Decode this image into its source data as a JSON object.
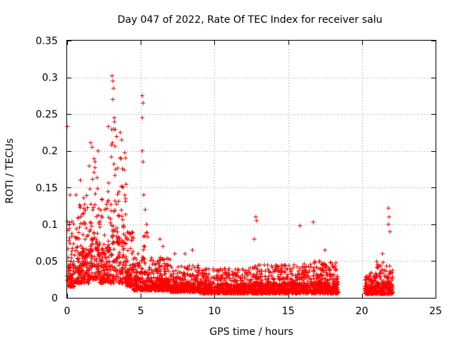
{
  "chart_data": {
    "type": "scatter",
    "title": "Day 047 of 2022, Rate Of TEC Index for receiver salu",
    "xlabel": "GPS time / hours",
    "ylabel": "ROTI / TECUs",
    "xlim": [
      0,
      25
    ],
    "ylim": [
      0,
      0.35
    ],
    "x_ticks": [
      0,
      5,
      10,
      15,
      20,
      25
    ],
    "x_tick_labels": [
      "0",
      "5",
      "10",
      "15",
      "20",
      "25"
    ],
    "y_ticks": [
      0,
      0.05,
      0.1,
      0.15,
      0.2,
      0.25,
      0.3,
      0.35
    ],
    "y_tick_labels": [
      "0",
      "0.05",
      "0.1",
      "0.15",
      "0.2",
      "0.25",
      "0.3",
      "0.35"
    ],
    "grid": true,
    "marker": "+",
    "marker_color": "#ff0000",
    "series": [
      {
        "name": "ROTI",
        "notable_points": [
          {
            "x": 0.0,
            "y": 0.233
          },
          {
            "x": 0.2,
            "y": 0.14
          },
          {
            "x": 0.6,
            "y": 0.14
          },
          {
            "x": 0.9,
            "y": 0.16
          },
          {
            "x": 1.6,
            "y": 0.211
          },
          {
            "x": 1.7,
            "y": 0.205
          },
          {
            "x": 1.9,
            "y": 0.185
          },
          {
            "x": 2.1,
            "y": 0.2
          },
          {
            "x": 2.8,
            "y": 0.233
          },
          {
            "x": 3.05,
            "y": 0.302
          },
          {
            "x": 3.1,
            "y": 0.295
          },
          {
            "x": 3.15,
            "y": 0.285
          },
          {
            "x": 3.1,
            "y": 0.27
          },
          {
            "x": 3.2,
            "y": 0.245
          },
          {
            "x": 3.6,
            "y": 0.225
          },
          {
            "x": 3.7,
            "y": 0.215
          },
          {
            "x": 5.1,
            "y": 0.275
          },
          {
            "x": 5.15,
            "y": 0.265
          },
          {
            "x": 5.1,
            "y": 0.245
          },
          {
            "x": 5.1,
            "y": 0.2
          },
          {
            "x": 5.15,
            "y": 0.185
          },
          {
            "x": 5.2,
            "y": 0.14
          },
          {
            "x": 5.3,
            "y": 0.12
          },
          {
            "x": 5.4,
            "y": 0.1
          },
          {
            "x": 6.3,
            "y": 0.08
          },
          {
            "x": 6.5,
            "y": 0.07
          },
          {
            "x": 7.3,
            "y": 0.06
          },
          {
            "x": 8.0,
            "y": 0.06
          },
          {
            "x": 8.5,
            "y": 0.065
          },
          {
            "x": 12.8,
            "y": 0.11
          },
          {
            "x": 12.85,
            "y": 0.105
          },
          {
            "x": 12.7,
            "y": 0.08
          },
          {
            "x": 15.8,
            "y": 0.098
          },
          {
            "x": 16.7,
            "y": 0.103
          },
          {
            "x": 17.5,
            "y": 0.065
          },
          {
            "x": 21.8,
            "y": 0.122
          },
          {
            "x": 21.85,
            "y": 0.11
          },
          {
            "x": 21.8,
            "y": 0.1
          },
          {
            "x": 21.9,
            "y": 0.09
          },
          {
            "x": 21.4,
            "y": 0.06
          }
        ],
        "envelope": [
          {
            "x": [
              0.0,
              0.5
            ],
            "y_range": [
              0.015,
              0.105
            ]
          },
          {
            "x": [
              0.5,
              1.0
            ],
            "y_range": [
              0.02,
              0.13
            ]
          },
          {
            "x": [
              1.0,
              1.5
            ],
            "y_range": [
              0.02,
              0.15
            ]
          },
          {
            "x": [
              1.5,
              2.2
            ],
            "y_range": [
              0.025,
              0.19
            ]
          },
          {
            "x": [
              2.2,
              2.7
            ],
            "y_range": [
              0.02,
              0.14
            ]
          },
          {
            "x": [
              2.7,
              3.0
            ],
            "y_range": [
              0.02,
              0.16
            ]
          },
          {
            "x": [
              3.0,
              3.5
            ],
            "y_range": [
              0.02,
              0.24
            ]
          },
          {
            "x": [
              3.5,
              4.0
            ],
            "y_range": [
              0.02,
              0.2
            ]
          },
          {
            "x": [
              4.0,
              4.5
            ],
            "y_range": [
              0.015,
              0.09
            ]
          },
          {
            "x": [
              4.5,
              5.0
            ],
            "y_range": [
              0.01,
              0.06
            ]
          },
          {
            "x": [
              5.0,
              5.5
            ],
            "y_range": [
              0.01,
              0.09
            ]
          },
          {
            "x": [
              5.5,
              7.0
            ],
            "y_range": [
              0.01,
              0.055
            ]
          },
          {
            "x": [
              7.0,
              9.0
            ],
            "y_range": [
              0.008,
              0.045
            ]
          },
          {
            "x": [
              9.0,
              12.0
            ],
            "y_range": [
              0.006,
              0.04
            ]
          },
          {
            "x": [
              12.0,
              14.0
            ],
            "y_range": [
              0.006,
              0.045
            ]
          },
          {
            "x": [
              14.0,
              16.0
            ],
            "y_range": [
              0.006,
              0.045
            ]
          },
          {
            "x": [
              16.0,
              18.4
            ],
            "y_range": [
              0.006,
              0.05
            ]
          },
          {
            "x": [
              20.2,
              21.0
            ],
            "y_range": [
              0.005,
              0.035
            ]
          },
          {
            "x": [
              21.0,
              22.1
            ],
            "y_range": [
              0.005,
              0.05
            ]
          }
        ]
      }
    ]
  }
}
